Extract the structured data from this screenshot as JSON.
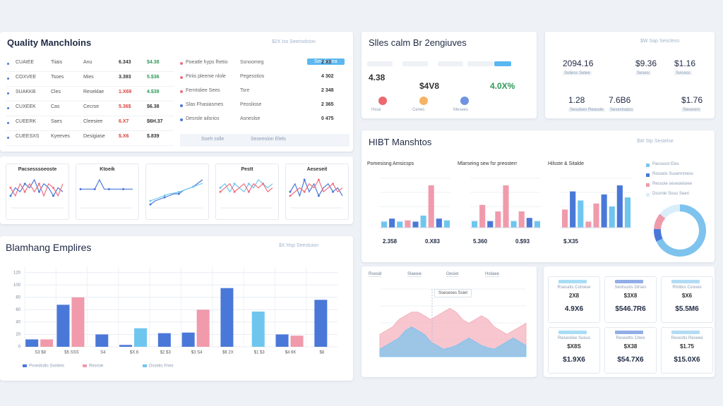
{
  "quality": {
    "title": "Quality Manchloins",
    "link": "$2X Iss Seerisdsion",
    "button": "Seeslusea",
    "rows": [
      {
        "cells": [
          "CUAIEE",
          "Tiiais",
          "Anu",
          "6.343",
          "$4.38"
        ],
        "colors": [
          "#333333",
          "#2f9a5a"
        ]
      },
      {
        "cells": [
          "COXVEE",
          "Tsoes",
          "Mies",
          "3.393",
          "5.$36"
        ],
        "colors": [
          "#333333",
          "#2f9a5a"
        ]
      },
      {
        "cells": [
          "SUAKKB",
          "Cles",
          "Reseklae",
          "1.X69",
          "4.$39"
        ],
        "colors": [
          "#d9463f",
          "#2f9a5a"
        ]
      },
      {
        "cells": [
          "CUXEEK",
          "Cas",
          "Cecrse",
          "5.36$",
          "$6.38"
        ],
        "colors": [
          "#d9463f",
          "#333333"
        ]
      },
      {
        "cells": [
          "CUEERK",
          "Saes",
          "Cleesiee",
          "6.X7",
          "$6H.37"
        ],
        "colors": [
          "#d9463f",
          "#333333"
        ]
      },
      {
        "cells": [
          "CUEESXS",
          "Kyeeves",
          "Desigiase",
          "$.X6",
          "$.839"
        ],
        "colors": [
          "#d9463f",
          "#333333"
        ]
      }
    ],
    "side_rows": [
      {
        "cells": [
          "Poeatle hyps fhetio",
          "Ssnoomeg",
          "2 X0"
        ],
        "color": "#ef6f7f"
      },
      {
        "cells": [
          "Piriis pleeme nlole",
          "Pegesstios",
          "4 302"
        ],
        "color": "#ef6f7f"
      },
      {
        "cells": [
          "Ferntsliee Sees",
          "Tsre",
          "2 348"
        ],
        "color": "#ef6f7f"
      },
      {
        "cells": [
          "Slas Fhasiasmes",
          "Peosliose",
          "2 365"
        ],
        "color": "#4a78d8"
      },
      {
        "cells": [
          "Desrsle ailsrios",
          "Asneslse",
          "0 475"
        ],
        "color": "#4a78d8"
      }
    ],
    "footer": [
      "Soeh sslle",
      "Seseesion Elels"
    ]
  },
  "sparks": [
    {
      "title": "Pacsesssoeoste",
      "series": [
        {
          "color": "#4a78d8",
          "values": [
            3,
            5,
            4,
            6,
            5,
            7,
            4,
            6,
            5,
            3,
            5,
            4
          ]
        },
        {
          "color": "#ef6f7f",
          "values": [
            5,
            3,
            6,
            4,
            6,
            4,
            6,
            3,
            6,
            5,
            3,
            6
          ]
        }
      ]
    },
    {
      "title": "Ktoeik",
      "series": [
        {
          "color": "#4a78d8",
          "values": [
            2,
            2,
            2,
            2,
            3,
            2,
            2,
            2,
            2,
            2,
            2,
            2
          ]
        }
      ]
    },
    {
      "series": [
        {
          "color": "#4a78d8",
          "values": [
            1,
            2,
            2.5,
            3,
            3.5,
            4,
            4,
            5,
            5.5,
            6,
            7,
            8
          ]
        },
        {
          "color": "#6ec6ef",
          "values": [
            2,
            2.5,
            3,
            3.5,
            4,
            4.2,
            4.5,
            5,
            5.5,
            6,
            6.5,
            7
          ]
        }
      ]
    },
    {
      "title": "Pestt",
      "series": [
        {
          "color": "#6ec6ef",
          "values": [
            5,
            6,
            4,
            6,
            5,
            4,
            6,
            5,
            7,
            6,
            5,
            6
          ]
        },
        {
          "color": "#ef6f7f",
          "values": [
            4,
            5,
            6,
            4,
            5,
            6,
            4,
            6,
            5,
            6,
            4,
            5
          ]
        }
      ]
    },
    {
      "title": "Aeseseit",
      "series": [
        {
          "color": "#4a78d8",
          "values": [
            4,
            6,
            3,
            7,
            4,
            6,
            3,
            5,
            6,
            4,
            5,
            3
          ]
        },
        {
          "color": "#ef6f7f",
          "values": [
            3,
            4,
            5,
            4,
            6,
            5,
            7,
            4,
            5,
            6,
            4,
            5
          ]
        }
      ]
    }
  ],
  "employees": {
    "title": "Blamhang Emplires",
    "link": "$X Hsp Seestuion",
    "yticks": [
      0,
      20,
      40,
      60,
      80,
      100,
      120
    ],
    "ylim": [
      0,
      130
    ],
    "categories": [
      "S3 $8",
      "$5 SSS",
      "S4",
      "$X.6",
      "$2 $3",
      "$3 S4",
      "$6 2X",
      "$1 $3",
      "$4 6K",
      "$8"
    ],
    "series": [
      {
        "name": "Pvsedsdlo Ssinleis",
        "color": "#4a78d8",
        "values": [
          12,
          68,
          20,
          3,
          22,
          23,
          95,
          null,
          20,
          76
        ]
      },
      {
        "name": "Resrsie",
        "color": "#f09aac",
        "values": [
          12,
          80,
          null,
          null,
          null,
          60,
          null,
          null,
          18,
          null
        ]
      },
      {
        "name": "Dsseits Fnes",
        "color": "#6ec6ef",
        "values": [
          null,
          null,
          null,
          30,
          null,
          null,
          null,
          57,
          null,
          null
        ]
      }
    ]
  },
  "sales": {
    "title": "Slles calm Br 2engiuves",
    "kpis": [
      {
        "value": "4.38",
        "label": "Hsse",
        "color": "#333333"
      },
      {
        "value": "$4V8",
        "label": "Cenes",
        "color": "#333333"
      },
      {
        "value": "4.0X%",
        "label": "Mesees",
        "color": "#2f9a5a"
      }
    ]
  },
  "summary": {
    "link": "$W Sap Sesclesn",
    "items": [
      {
        "value": "2094.16",
        "label": "Suliess Setee"
      },
      {
        "value": "$9.36",
        "label": "Sesesi"
      },
      {
        "value": "$1.16",
        "label": "Svicess"
      },
      {
        "value": "1.28",
        "label": "Sesulses Reassle"
      },
      {
        "value": "7.6B6",
        "label": "Sesestsatss"
      },
      {
        "value": "$1.76",
        "label": "Siesesirs"
      }
    ]
  },
  "metrics": {
    "title": "HIBT Manshtos",
    "link": "$W Stp Sestelse",
    "charts": [
      {
        "title": "Pomesisng Amsicsps",
        "values": [
          1,
          1.5,
          1,
          1.2,
          1,
          2,
          7,
          1.5,
          1.2
        ],
        "colors": [
          "#6ec6ef",
          "#4a78d8",
          "#6ec6ef",
          "#f09aac",
          "#4a78d8",
          "#6ec6ef",
          "#f09aac",
          "#4a78d8",
          "#6ec6ef"
        ],
        "footer": [
          "2.358",
          "0.X83"
        ]
      },
      {
        "title": "Mlarseing sew fsr preosterr",
        "values": [
          1,
          3.5,
          1,
          2.5,
          6.5,
          1,
          2.5,
          1.5,
          1
        ],
        "colors": [
          "#6ec6ef",
          "#f09aac",
          "#4a78d8",
          "#f09aac",
          "#f09aac",
          "#6ec6ef",
          "#f09aac",
          "#4a78d8",
          "#6ec6ef"
        ],
        "footer": [
          "5.360",
          "0.$93"
        ]
      },
      {
        "title": "Hilsste & Sitalde",
        "values": [
          3,
          6,
          4.5,
          1,
          4,
          5.5,
          3.5,
          7,
          5
        ],
        "colors": [
          "#f09aac",
          "#4a78d8",
          "#6ec6ef",
          "#f09aac",
          "#f09aac",
          "#4a78d8",
          "#6ec6ef",
          "#4a78d8",
          "#6ec6ef"
        ],
        "footer": [
          "$.X35"
        ]
      }
    ],
    "donut": {
      "values": [
        68,
        8,
        10,
        14
      ],
      "colors": [
        "#7ec3ee",
        "#4a78d8",
        "#ef9aab",
        "#d9eefa"
      ],
      "labels": [
        "Pacsesst Eles",
        "Rosoeis Susennmess",
        "Ressoie sesesieisiee",
        "Dssrnle Sisss Seeri"
      ]
    }
  },
  "trend": {
    "tabs": [
      "Rsesid",
      "Slaeeie",
      "Oesiet",
      "Hsliaee"
    ],
    "tooltip": "Sseseses Ssiet",
    "series": [
      {
        "color": "#f4b3bf",
        "values": [
          3,
          3.5,
          4,
          5,
          5.5,
          6,
          6,
          5.5,
          5,
          5.5,
          6,
          6.5,
          6,
          5,
          4.5,
          5,
          5.5,
          5,
          4,
          3.5,
          3,
          3.5,
          4,
          4.5
        ]
      },
      {
        "color": "#7fc4ee",
        "values": [
          1,
          1.5,
          2,
          2.5,
          3.5,
          4,
          3.5,
          3,
          2,
          1.5,
          1,
          1.2,
          1.5,
          2,
          2.5,
          2,
          1.5,
          1.2,
          1,
          1.5,
          2,
          2.5,
          2,
          1.5
        ]
      }
    ]
  },
  "cards": [
    {
      "title": "Rsesatis Cotnese",
      "mid": "2X8",
      "value": "4.9X6"
    },
    {
      "title": "Sevtsusts Dlrses",
      "mid": "$3X8",
      "value": "$546.7R6"
    },
    {
      "title": "Rfsltivs Csnues",
      "mid": "$X6",
      "value": "$5.5M6"
    },
    {
      "title": "Rwsesliee Sueus",
      "mid": "$X8S",
      "value": "$1.9X6"
    },
    {
      "title": "Reseeltis Citeis",
      "mid": "$X38",
      "value": "$54.7X6"
    },
    {
      "title": "Resestiv Reseee",
      "mid": "$1.75",
      "value": "$15.0X6"
    }
  ]
}
